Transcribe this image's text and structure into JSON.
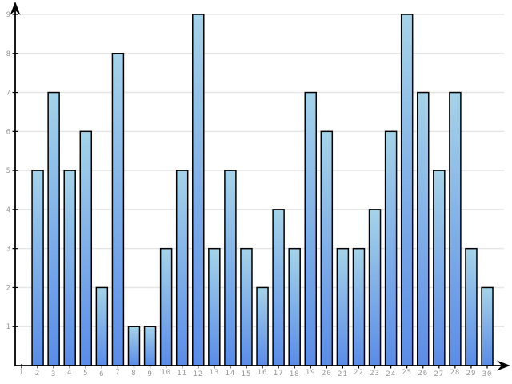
{
  "chart_data": {
    "type": "bar",
    "title": "",
    "xlabel": "",
    "ylabel": "",
    "categories": [
      "1",
      "2",
      "3",
      "4",
      "5",
      "6",
      "7",
      "8",
      "9",
      "10",
      "11",
      "12",
      "13",
      "14",
      "15",
      "16",
      "17",
      "18",
      "19",
      "20",
      "21",
      "22",
      "23",
      "24",
      "25",
      "26",
      "27",
      "28",
      "29",
      "30"
    ],
    "values": [
      0,
      5,
      7,
      5,
      6,
      2,
      8,
      1,
      1,
      3,
      5,
      9,
      3,
      5,
      3,
      2,
      4,
      3,
      7,
      6,
      3,
      3,
      4,
      6,
      9,
      7,
      5,
      7,
      3,
      2
    ],
    "ylim": [
      0,
      9
    ],
    "yticks": [
      "1",
      "2",
      "3",
      "4",
      "5",
      "6",
      "7",
      "8",
      "9"
    ],
    "grid": true,
    "legend": null
  },
  "style": {
    "background": "#ffffff",
    "bar_gradient_top": "#a5d3e8",
    "bar_gradient_bottom": "#5a8ce8",
    "bar_border": "#000000",
    "gridline_color": "#e6e6e6",
    "axis_color": "#000000",
    "tick_label_color": "#999999"
  }
}
